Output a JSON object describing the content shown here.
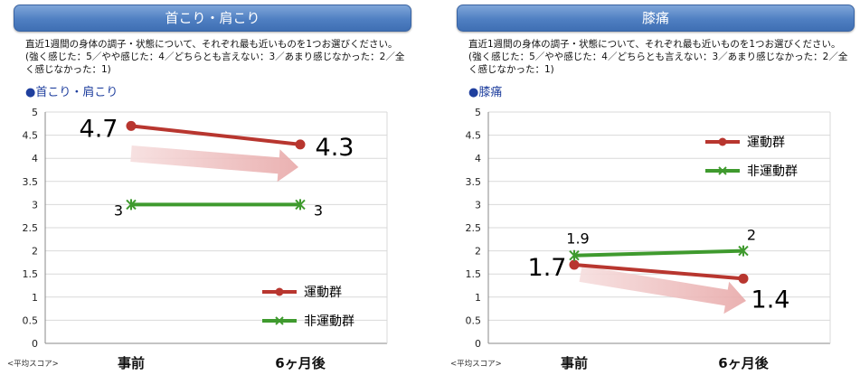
{
  "description": "直近1週間の身体の調子・状態について、それぞれ最も近いものを1つお選びください。(強く感じた：5／やや感じた：4／どちらとも言えない：3／あまり感じなかった：2／全く感じなかった：1)",
  "score_note": "<平均スコア>",
  "colors": {
    "exercise": "#b8362f",
    "non_exercise": "#3f9a2e",
    "title_bar": "#4f7fc2"
  },
  "chart_data": [
    {
      "type": "line",
      "panel_title": "首こり・肩こり",
      "subtitle": "●首こり・肩こり",
      "categories": [
        "事前",
        "6ヶ月後"
      ],
      "ylim": [
        0,
        5
      ],
      "yticks": [
        "0",
        "0.5",
        "1",
        "1.5",
        "2",
        "2.5",
        "3",
        "3.5",
        "4",
        "4.5",
        "5"
      ],
      "grid": true,
      "legend_position": "bottom-right",
      "series": [
        {
          "name": "運動群",
          "values": [
            4.7,
            4.3
          ],
          "labels": [
            "4.7",
            "4.3"
          ]
        },
        {
          "name": "非運動群",
          "values": [
            3,
            3
          ],
          "labels": [
            "3",
            "3"
          ]
        }
      ]
    },
    {
      "type": "line",
      "panel_title": "膝痛",
      "subtitle": "●膝痛",
      "categories": [
        "事前",
        "6ヶ月後"
      ],
      "ylim": [
        0,
        5
      ],
      "yticks": [
        "0",
        "0.5",
        "1",
        "1.5",
        "2",
        "2.5",
        "3",
        "3.5",
        "4",
        "4.5",
        "5"
      ],
      "grid": true,
      "legend_position": "top-right",
      "series": [
        {
          "name": "運動群",
          "values": [
            1.7,
            1.4
          ],
          "labels": [
            "1.7",
            "1.4"
          ]
        },
        {
          "name": "非運動群",
          "values": [
            1.9,
            2
          ],
          "labels": [
            "1.9",
            "2"
          ]
        }
      ]
    }
  ]
}
